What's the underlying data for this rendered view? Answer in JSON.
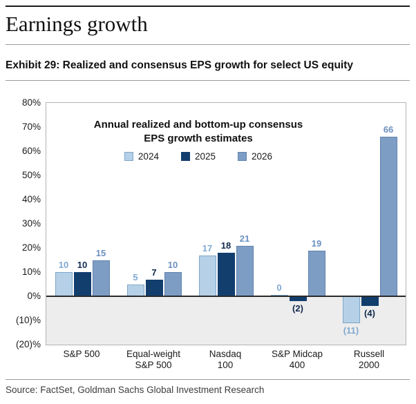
{
  "header": {
    "title": "Earnings growth",
    "exhibit_title": "Exhibit 29: Realized and consensus EPS growth for select US equity"
  },
  "footer": {
    "source": "Source: FactSet, Goldman Sachs Global Investment Research"
  },
  "chart_data": {
    "type": "bar",
    "title": "Annual realized and bottom-up consensus EPS growth estimates",
    "annotation": [
      "Annual realized and bottom-up consensus",
      "EPS growth estimates"
    ],
    "categories": [
      "S&P 500",
      "Equal-weight\nS&P 500",
      "Nasdaq\n100",
      "S&P Midcap\n400",
      "Russell\n2000"
    ],
    "series": [
      {
        "name": "2024",
        "color": "#b5d0e7",
        "border": "#7fa6c9",
        "label_color": "#7fa9d2",
        "values": [
          10,
          5,
          17,
          0,
          -11
        ],
        "labels": [
          "10",
          "5",
          "17",
          "0",
          "(11)"
        ]
      },
      {
        "name": "2025",
        "color": "#123e6e",
        "border": "#123e6e",
        "label_color": "#10294d",
        "values": [
          10,
          7,
          18,
          -2,
          -4
        ],
        "labels": [
          "10",
          "7",
          "18",
          "(2)",
          "(4)"
        ]
      },
      {
        "name": "2026",
        "color": "#7e9dc5",
        "border": "#5f82ad",
        "label_color": "#6b90bf",
        "values": [
          15,
          10,
          21,
          19,
          66
        ],
        "labels": [
          "15",
          "10",
          "21",
          "19",
          "66"
        ]
      }
    ],
    "ylim": [
      -20,
      80
    ],
    "yticks": [
      {
        "label": "80%",
        "value": 80
      },
      {
        "label": "70%",
        "value": 70
      },
      {
        "label": "60%",
        "value": 60
      },
      {
        "label": "50%",
        "value": 50
      },
      {
        "label": "40%",
        "value": 40
      },
      {
        "label": "30%",
        "value": 30
      },
      {
        "label": "20%",
        "value": 20
      },
      {
        "label": "10%",
        "value": 10
      },
      {
        "label": "0%",
        "value": 0
      },
      {
        "label": "(10)%",
        "value": -10
      },
      {
        "label": "(20)%",
        "value": -20
      }
    ],
    "grid": false,
    "legend_position": "inside-top-center"
  }
}
